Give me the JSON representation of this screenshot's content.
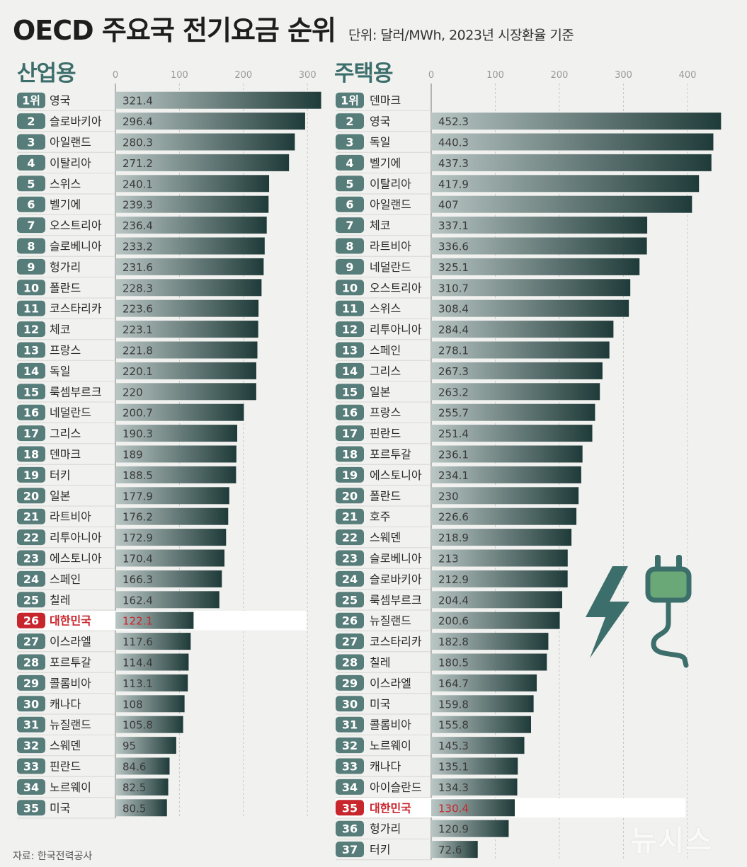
{
  "title": "OECD 주요국 전기요금 순위",
  "unit_note": "단위: 달러/MWh, 2023년 시장환율 기준",
  "source": "자료: 한국전력공사",
  "watermark": "뉴시스",
  "colors": {
    "accent": "#3c6e6b",
    "badge": "#577d7a",
    "highlight_badge": "#c8262d",
    "highlight_text": "#c8262d",
    "bar_light": "#b9c6c4",
    "bar_dark": "#1f3b39",
    "background": "#f1f1ef"
  },
  "chart_data": [
    {
      "type": "bar",
      "orientation": "horizontal",
      "title": "산업용",
      "xlim": [
        0,
        320
      ],
      "xticks": [
        0,
        100,
        200,
        300
      ],
      "ranks": [
        "1위",
        "2",
        "3",
        "4",
        "5",
        "6",
        "7",
        "8",
        "9",
        "10",
        "11",
        "12",
        "13",
        "14",
        "15",
        "16",
        "17",
        "18",
        "19",
        "20",
        "21",
        "22",
        "23",
        "24",
        "25",
        "26",
        "27",
        "28",
        "29",
        "30",
        "31",
        "32",
        "33",
        "34",
        "35"
      ],
      "categories": [
        "영국",
        "슬로바키아",
        "아일랜드",
        "이탈리아",
        "스위스",
        "벨기에",
        "오스트리아",
        "슬로베니아",
        "헝가리",
        "폴란드",
        "코스타리카",
        "체코",
        "프랑스",
        "독일",
        "룩셈부르크",
        "네덜란드",
        "그리스",
        "덴마크",
        "터키",
        "일본",
        "라트비아",
        "리투아니아",
        "에스토니아",
        "스페인",
        "칠레",
        "대한민국",
        "이스라엘",
        "포르투갈",
        "콜롬비아",
        "캐나다",
        "뉴질랜드",
        "스웨덴",
        "핀란드",
        "노르웨이",
        "미국"
      ],
      "values": [
        321.4,
        296.4,
        280.3,
        271.2,
        240.1,
        239.3,
        236.4,
        233.2,
        231.6,
        228.3,
        223.6,
        223.1,
        221.8,
        220.1,
        220,
        200.7,
        190.3,
        189,
        188.5,
        177.9,
        176.2,
        172.9,
        170.4,
        166.3,
        162.4,
        122.1,
        117.6,
        114.4,
        113.1,
        108,
        105.8,
        95,
        84.6,
        82.5,
        80.5
      ],
      "labels": [
        "321.4",
        "296.4",
        "280.3",
        "271.2",
        "240.1",
        "239.3",
        "236.4",
        "233.2",
        "231.6",
        "228.3",
        "223.6",
        "223.1",
        "221.8",
        "220.1",
        "220",
        "200.7",
        "190.3",
        "189",
        "188.5",
        "177.9",
        "176.2",
        "172.9",
        "170.4",
        "166.3",
        "162.4",
        "122.1",
        "117.6",
        "114.4",
        "113.1",
        "108",
        "105.8",
        "95",
        "84.6",
        "82.5",
        "80.5"
      ],
      "highlight": "대한민국"
    },
    {
      "type": "bar",
      "orientation": "horizontal",
      "title": "주택용",
      "xlim": [
        0,
        450
      ],
      "xticks": [
        0,
        100,
        200,
        300,
        400
      ],
      "ranks": [
        "1위",
        "2",
        "3",
        "4",
        "5",
        "6",
        "7",
        "8",
        "9",
        "10",
        "11",
        "12",
        "13",
        "14",
        "15",
        "16",
        "17",
        "18",
        "19",
        "20",
        "21",
        "22",
        "23",
        "24",
        "25",
        "26",
        "27",
        "28",
        "29",
        "30",
        "31",
        "32",
        "33",
        "34",
        "35",
        "36",
        "37"
      ],
      "categories": [
        "덴마크",
        "영국",
        "독일",
        "벨기에",
        "이탈리아",
        "아일랜드",
        "체코",
        "라트비아",
        "네덜란드",
        "오스트리아",
        "스위스",
        "리투아니아",
        "스페인",
        "그리스",
        "일본",
        "프랑스",
        "핀란드",
        "포르투갈",
        "에스토니아",
        "폴란드",
        "호주",
        "스웨덴",
        "슬로베니아",
        "슬로바키아",
        "룩셈부르크",
        "뉴질랜드",
        "코스타리카",
        "칠레",
        "이스라엘",
        "미국",
        "콜롬비아",
        "노르웨이",
        "캐나다",
        "아이슬란드",
        "대한민국",
        "헝가리",
        "터키"
      ],
      "values": [
        null,
        452.3,
        440.3,
        437.3,
        417.9,
        407,
        337.1,
        336.6,
        325.1,
        310.7,
        308.4,
        284.4,
        278.1,
        267.3,
        263.2,
        255.7,
        251.4,
        236.1,
        234.1,
        230,
        226.6,
        218.9,
        213,
        212.9,
        204.4,
        200.6,
        182.8,
        180.5,
        164.7,
        159.8,
        155.8,
        145.3,
        135.1,
        134.3,
        130.4,
        120.9,
        72.6
      ],
      "labels": [
        "",
        "452.3",
        "440.3",
        "437.3",
        "417.9",
        "407",
        "337.1",
        "336.6",
        "325.1",
        "310.7",
        "308.4",
        "284.4",
        "278.1",
        "267.3",
        "263.2",
        "255.7",
        "251.4",
        "236.1",
        "234.1",
        "230",
        "226.6",
        "218.9",
        "213",
        "212.9",
        "204.4",
        "200.6",
        "182.8",
        "180.5",
        "164.7",
        "159.8",
        "155.8",
        "145.3",
        "135.1",
        "134.3",
        "130.4",
        "120.9",
        "72.6"
      ],
      "highlight": "대한민국"
    }
  ]
}
